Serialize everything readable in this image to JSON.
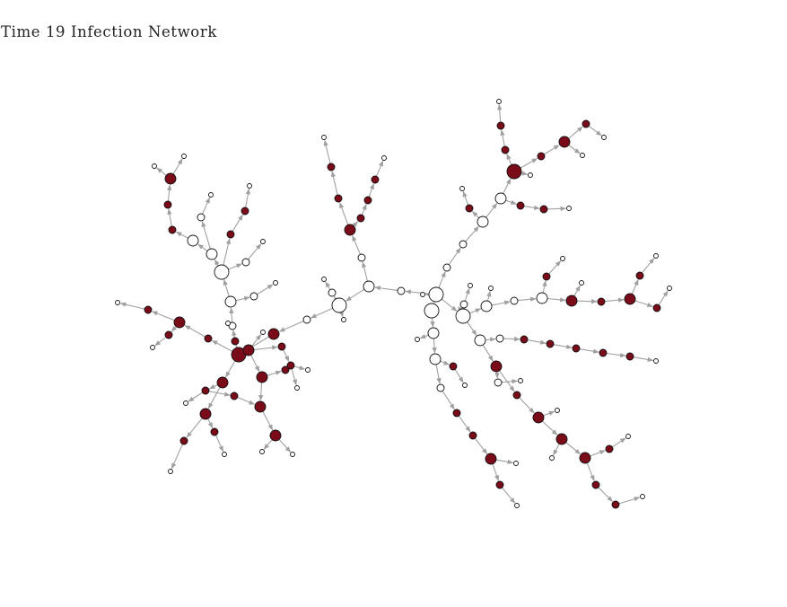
{
  "title": "Time 19 Infection Network",
  "colors": {
    "infected": "#7a0c1a",
    "susceptible": "#ffffff",
    "node_stroke": "#111111",
    "edge": "#a0a0a0"
  }
}
